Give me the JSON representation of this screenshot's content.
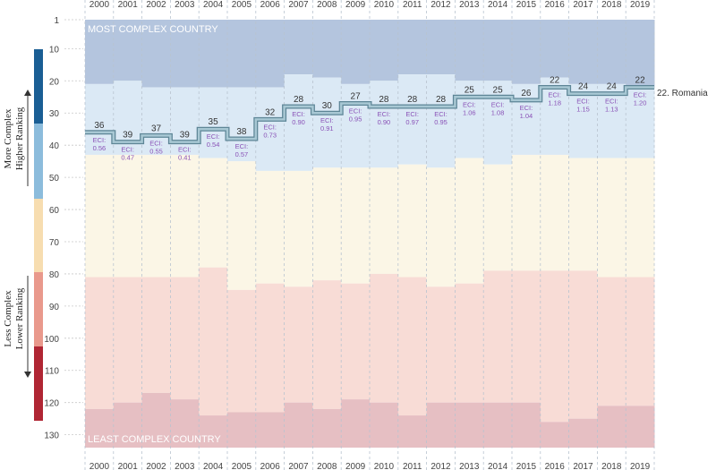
{
  "chart_data": {
    "type": "step-rank",
    "country_label": "22. Romania",
    "top_band_label": "MOST COMPLEX COUNTRY",
    "bottom_band_label": "LEAST COMPLEX COUNTRY",
    "side_label_upper": [
      "More Complex",
      "Higher Ranking"
    ],
    "side_label_lower": [
      "Less Complex",
      "Lower Ranking"
    ],
    "eci_prefix": "ECI:",
    "years": [
      "2000",
      "2001",
      "2002",
      "2003",
      "2004",
      "2005",
      "2006",
      "2007",
      "2008",
      "2009",
      "2010",
      "2011",
      "2012",
      "2013",
      "2014",
      "2015",
      "2016",
      "2017",
      "2018",
      "2019"
    ],
    "ranks": [
      36,
      39,
      37,
      39,
      35,
      38,
      32,
      28,
      30,
      27,
      28,
      28,
      28,
      25,
      25,
      26,
      22,
      24,
      24,
      22
    ],
    "eci": [
      "0.56",
      "0.47",
      "0.55",
      "0.41",
      "0.54",
      "0.57",
      "0.73",
      "0.90",
      "0.91",
      "0.95",
      "0.90",
      "0.97",
      "0.95",
      "1.06",
      "1.08",
      "1.04",
      "1.18",
      "1.15",
      "1.13",
      "1.20"
    ],
    "total_countries": [
      122,
      120,
      117,
      119,
      124,
      123,
      123,
      120,
      122,
      119,
      120,
      124,
      120,
      120,
      120,
      120,
      126,
      125,
      121,
      121
    ],
    "band_boundaries": {
      "blue_to_lightblue": [
        21,
        20,
        22,
        22,
        22,
        22,
        22,
        18,
        19,
        21,
        20,
        18,
        18,
        20,
        20,
        21,
        19,
        21,
        21,
        22
      ],
      "lightblue_to_cream": [
        43,
        43,
        43,
        43,
        44,
        45,
        48,
        48,
        47,
        47,
        47,
        46,
        47,
        44,
        46,
        43,
        43,
        44,
        44,
        44
      ],
      "cream_to_pink": [
        81,
        81,
        81,
        81,
        78,
        85,
        83,
        84,
        82,
        83,
        80,
        81,
        84,
        83,
        79,
        79,
        79,
        79,
        81,
        81
      ]
    },
    "y_ticks": [
      1,
      10,
      20,
      30,
      40,
      50,
      60,
      70,
      80,
      90,
      100,
      110,
      120,
      130
    ],
    "ylim": [
      1,
      134
    ],
    "colors": {
      "band_blue": "#b4c5de",
      "band_lightblue": "#dbe9f5",
      "band_cream": "#fbf6e6",
      "band_pink": "#f8dcd6",
      "band_red": "#e6bfc3",
      "rank_line": "#5d8596",
      "eci_text": "#8a52b7",
      "rank_text": "#333333",
      "sidebar": [
        "#1a5e94",
        "#8cbcdc",
        "#f7ddb0",
        "#e9998c",
        "#b02634"
      ]
    }
  }
}
